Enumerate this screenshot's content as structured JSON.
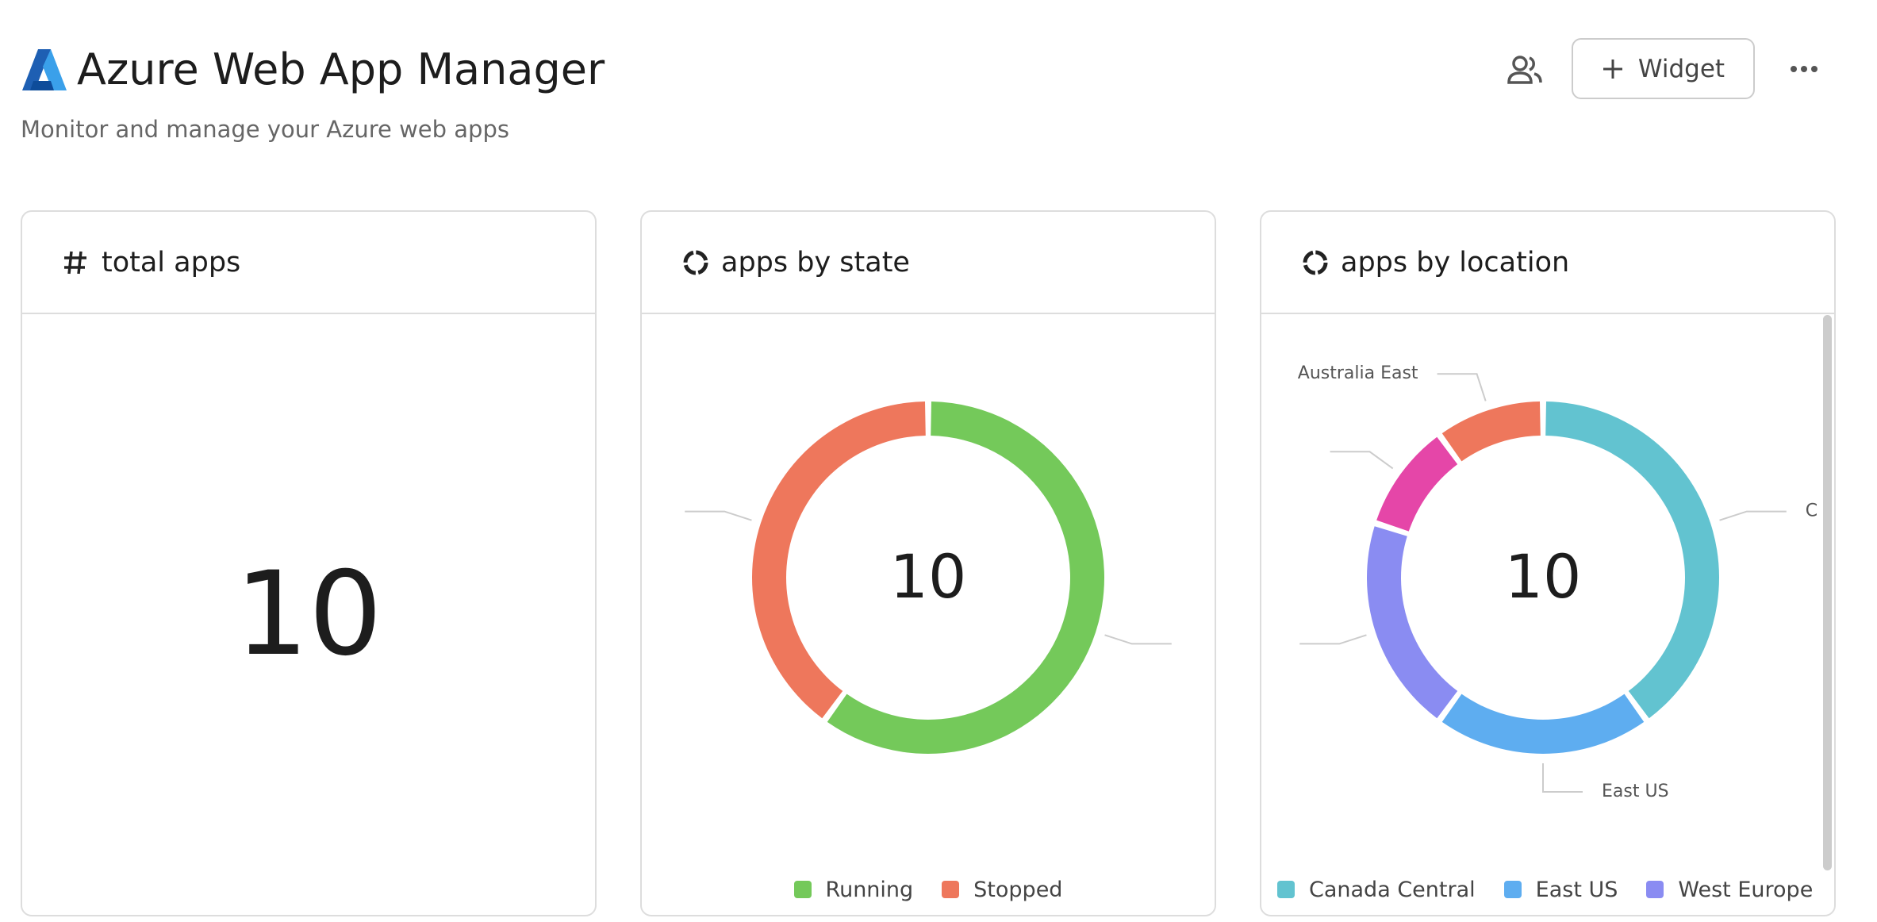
{
  "header": {
    "title": "Azure Web App Manager",
    "subtitle": "Monitor and manage your Azure web apps"
  },
  "toolbar": {
    "add_widget": "Widget"
  },
  "stat": {
    "title": "total apps",
    "value": 10
  },
  "chart_data": [
    {
      "type": "donut",
      "title": "apps by state",
      "center_label": 10,
      "categories": [
        "Running",
        "Stopped"
      ],
      "values": [
        6,
        4
      ],
      "colors": [
        "#74c95a",
        "#ee775c"
      ]
    },
    {
      "type": "donut",
      "title": "apps by location",
      "center_label": 10,
      "categories": [
        "Canada Central",
        "East US",
        "West Europe",
        null,
        "Australia East"
      ],
      "values": [
        4,
        2,
        2,
        1,
        1
      ],
      "colors": [
        "#62c3d0",
        "#5eadf0",
        "#8a8cf2",
        "#e546a8",
        "#ee775c"
      ]
    }
  ]
}
